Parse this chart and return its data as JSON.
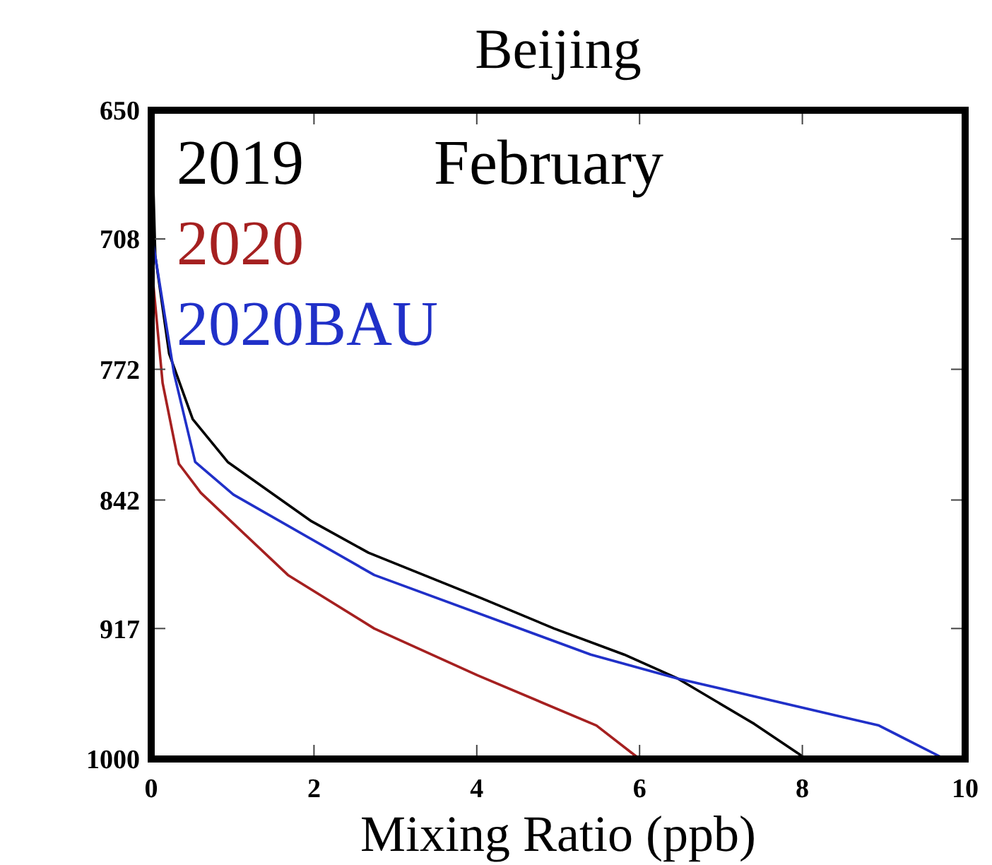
{
  "chart_data": {
    "type": "line",
    "title": "Beijing",
    "xlabel": "Mixing Ratio (ppb)",
    "annotations": [
      "February"
    ],
    "xlim": [
      0,
      10
    ],
    "xticks": [
      0,
      2,
      4,
      6,
      8,
      10
    ],
    "ylim": [
      1000,
      650
    ],
    "yticks": [
      650,
      708,
      772,
      842,
      917,
      1000
    ],
    "log": "y",
    "grid": false,
    "legend": "top left",
    "marker": "none",
    "line_style": "solid",
    "series": [
      {
        "name": "2019",
        "color": "#000000",
        "x": [
          0,
          0.05,
          0.22,
          0.51,
          0.94,
          1.97,
          2.67,
          4.07,
          4.95,
          5.81,
          6.47,
          7.41,
          8.05
        ],
        "values": [
          650,
          716,
          764,
          798,
          821,
          854,
          872,
          899,
          917,
          933,
          948,
          977,
          1000
        ]
      },
      {
        "name": "2020",
        "color": "#a52020",
        "x": [
          0.02,
          0.14,
          0.34,
          0.61,
          1.68,
          2.74,
          4.01,
          5.47,
          6.0
        ],
        "values": [
          727,
          779,
          822,
          838,
          885,
          917,
          946,
          978,
          1000
        ]
      },
      {
        "name": "2020BAU",
        "color": "#2030c8",
        "x": [
          0.02,
          0.28,
          0.54,
          1.01,
          2.74,
          5.4,
          6.47,
          8.94,
          9.75
        ],
        "values": [
          709,
          774,
          821,
          839,
          885,
          933,
          948,
          978,
          1000
        ]
      }
    ]
  }
}
